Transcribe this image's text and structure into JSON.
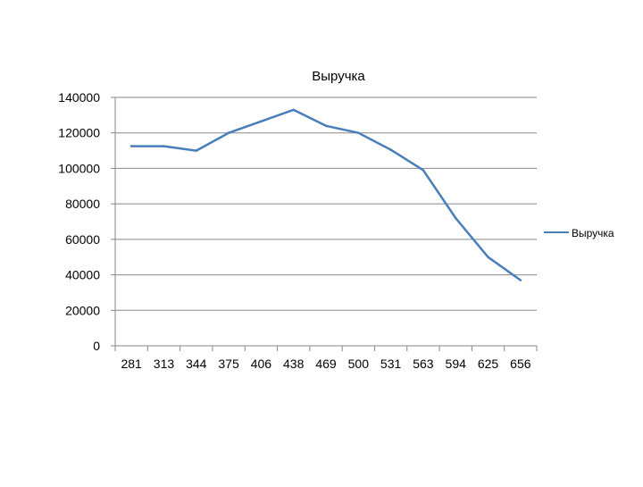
{
  "chart_data": {
    "type": "line",
    "title": "Выручка",
    "xlabel": "",
    "ylabel": "",
    "categories": [
      "281",
      "313",
      "344",
      "375",
      "406",
      "438",
      "469",
      "500",
      "531",
      "563",
      "594",
      "625",
      "656"
    ],
    "series": [
      {
        "name": "Выручка",
        "color": "#4A7EBB",
        "values": [
          112500,
          112500,
          110000,
          120000,
          126500,
          133000,
          124000,
          120000,
          110500,
          99000,
          72000,
          50000,
          37000
        ]
      }
    ],
    "ylim": [
      0,
      140000
    ],
    "yticks": [
      "0",
      "20000",
      "40000",
      "60000",
      "80000",
      "100000",
      "120000",
      "140000"
    ],
    "grid": "horizontal",
    "legend_position": "right",
    "gridline_color": "#878787"
  }
}
